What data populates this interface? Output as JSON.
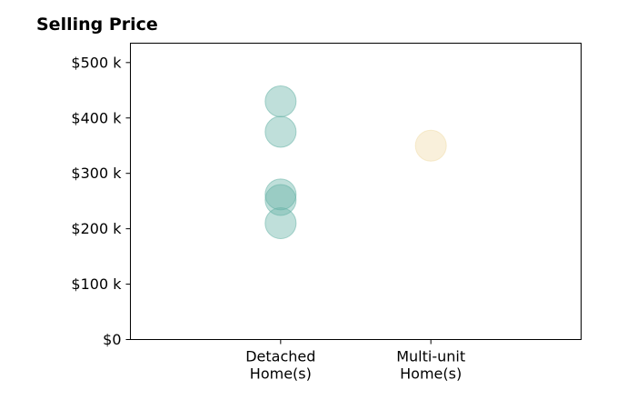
{
  "chart_data": {
    "type": "scatter",
    "title": "Selling Price",
    "xlabel": "",
    "ylabel": "",
    "categories": [
      [
        "Detached",
        "Home(s)"
      ],
      [
        "Multi-unit",
        "Home(s)"
      ]
    ],
    "y_ticks": [
      {
        "value": 0,
        "label": "$0"
      },
      {
        "value": 100000,
        "label": "$100 k"
      },
      {
        "value": 200000,
        "label": "$200 k"
      },
      {
        "value": 300000,
        "label": "$300 k"
      },
      {
        "value": 400000,
        "label": "$400 k"
      },
      {
        "value": 500000,
        "label": "$500 k"
      }
    ],
    "ylim": [
      0,
      535000
    ],
    "xlim": [
      0,
      3
    ],
    "grid": false,
    "series": [
      {
        "category": "Detached\nHome(s)",
        "color": "#66b2a6",
        "values": [
          430000,
          375000,
          262000,
          252000,
          210000
        ]
      },
      {
        "category": "Multi-unit\nHome(s)",
        "color": "#f0dcaa",
        "values": [
          350000
        ]
      }
    ]
  }
}
